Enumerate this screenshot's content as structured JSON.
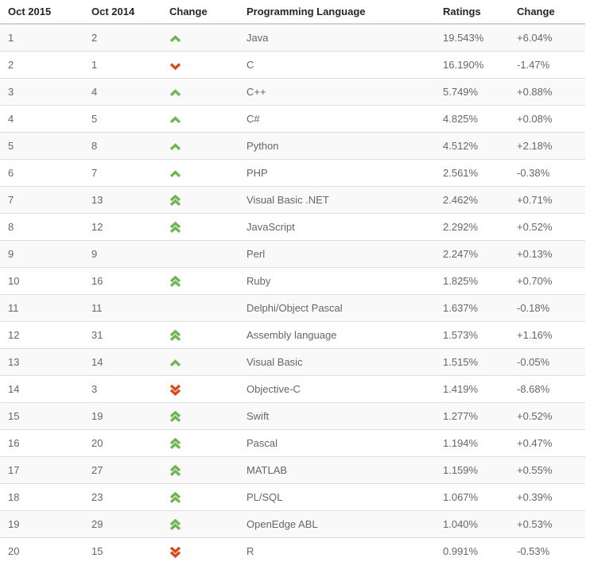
{
  "table": {
    "columns": [
      {
        "label": "Oct 2015"
      },
      {
        "label": "Oct 2014"
      },
      {
        "label": "Change"
      },
      {
        "label": "Programming Language"
      },
      {
        "label": "Ratings"
      },
      {
        "label": "Change"
      }
    ],
    "rows": [
      {
        "rank_now": "1",
        "rank_prev": "2",
        "position_change": "up",
        "language": "Java",
        "ratings": "19.543%",
        "change": "+6.04%"
      },
      {
        "rank_now": "2",
        "rank_prev": "1",
        "position_change": "down",
        "language": "C",
        "ratings": "16.190%",
        "change": "-1.47%"
      },
      {
        "rank_now": "3",
        "rank_prev": "4",
        "position_change": "up",
        "language": "C++",
        "ratings": "5.749%",
        "change": "+0.88%"
      },
      {
        "rank_now": "4",
        "rank_prev": "5",
        "position_change": "up",
        "language": "C#",
        "ratings": "4.825%",
        "change": "+0.08%"
      },
      {
        "rank_now": "5",
        "rank_prev": "8",
        "position_change": "up",
        "language": "Python",
        "ratings": "4.512%",
        "change": "+2.18%"
      },
      {
        "rank_now": "6",
        "rank_prev": "7",
        "position_change": "up",
        "language": "PHP",
        "ratings": "2.561%",
        "change": "-0.38%"
      },
      {
        "rank_now": "7",
        "rank_prev": "13",
        "position_change": "up2",
        "language": "Visual Basic .NET",
        "ratings": "2.462%",
        "change": "+0.71%"
      },
      {
        "rank_now": "8",
        "rank_prev": "12",
        "position_change": "up2",
        "language": "JavaScript",
        "ratings": "2.292%",
        "change": "+0.52%"
      },
      {
        "rank_now": "9",
        "rank_prev": "9",
        "position_change": "none",
        "language": "Perl",
        "ratings": "2.247%",
        "change": "+0.13%"
      },
      {
        "rank_now": "10",
        "rank_prev": "16",
        "position_change": "up2",
        "language": "Ruby",
        "ratings": "1.825%",
        "change": "+0.70%"
      },
      {
        "rank_now": "11",
        "rank_prev": "11",
        "position_change": "none",
        "language": "Delphi/Object Pascal",
        "ratings": "1.637%",
        "change": "-0.18%"
      },
      {
        "rank_now": "12",
        "rank_prev": "31",
        "position_change": "up2",
        "language": "Assembly language",
        "ratings": "1.573%",
        "change": "+1.16%"
      },
      {
        "rank_now": "13",
        "rank_prev": "14",
        "position_change": "up",
        "language": "Visual Basic",
        "ratings": "1.515%",
        "change": "-0.05%"
      },
      {
        "rank_now": "14",
        "rank_prev": "3",
        "position_change": "down2",
        "language": "Objective-C",
        "ratings": "1.419%",
        "change": "-8.68%"
      },
      {
        "rank_now": "15",
        "rank_prev": "19",
        "position_change": "up2",
        "language": "Swift",
        "ratings": "1.277%",
        "change": "+0.52%"
      },
      {
        "rank_now": "16",
        "rank_prev": "20",
        "position_change": "up2",
        "language": "Pascal",
        "ratings": "1.194%",
        "change": "+0.47%"
      },
      {
        "rank_now": "17",
        "rank_prev": "27",
        "position_change": "up2",
        "language": "MATLAB",
        "ratings": "1.159%",
        "change": "+0.55%"
      },
      {
        "rank_now": "18",
        "rank_prev": "23",
        "position_change": "up2",
        "language": "PL/SQL",
        "ratings": "1.067%",
        "change": "+0.39%"
      },
      {
        "rank_now": "19",
        "rank_prev": "29",
        "position_change": "up2",
        "language": "OpenEdge ABL",
        "ratings": "1.040%",
        "change": "+0.53%"
      },
      {
        "rank_now": "20",
        "rank_prev": "15",
        "position_change": "down2",
        "language": "R",
        "ratings": "0.991%",
        "change": "-0.53%"
      }
    ]
  },
  "icons": {
    "up": "chevron-up-icon",
    "up2": "double-chevron-up-icon",
    "down": "chevron-down-icon",
    "down2": "double-chevron-down-icon"
  },
  "colors": {
    "rank_up_green": "#6fb553",
    "rank_down_red": "#d8481f"
  }
}
